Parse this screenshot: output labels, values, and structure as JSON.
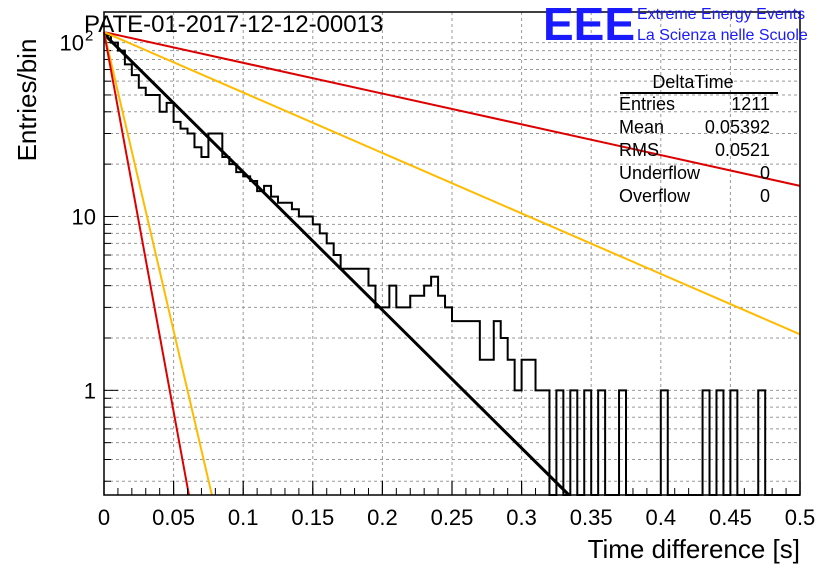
{
  "chart_data": {
    "type": "histogram",
    "title": "PATE-01-2017-12-12-00013",
    "xlabel": "Time difference [s]",
    "ylabel": "Entries/bin",
    "xlim": [
      0,
      0.5
    ],
    "ylim": [
      0.25,
      150
    ],
    "yscale": "log",
    "grid": true,
    "x_ticks": [
      {
        "value": 0,
        "label": "0"
      },
      {
        "value": 0.05,
        "label": "0.05"
      },
      {
        "value": 0.1,
        "label": "0.1"
      },
      {
        "value": 0.15,
        "label": "0.15"
      },
      {
        "value": 0.2,
        "label": "0.2"
      },
      {
        "value": 0.25,
        "label": "0.25"
      },
      {
        "value": 0.3,
        "label": "0.3"
      },
      {
        "value": 0.35,
        "label": "0.35"
      },
      {
        "value": 0.4,
        "label": "0.4"
      },
      {
        "value": 0.45,
        "label": "0.45"
      },
      {
        "value": 0.5,
        "label": "0.5"
      }
    ],
    "y_ticks": [
      {
        "value": 1,
        "label": "1"
      },
      {
        "value": 10,
        "label": "10"
      },
      {
        "value": 100,
        "label": "10",
        "sup": "2"
      }
    ],
    "bin_width": 0.005,
    "histogram": {
      "name": "DeltaTime",
      "color": "#000000",
      "bin_start": 0,
      "counts": [
        110,
        100,
        90,
        75,
        65,
        55,
        50,
        50,
        40,
        45,
        35,
        32,
        30,
        25,
        22,
        30,
        30,
        22,
        20,
        18,
        17,
        16,
        14,
        15,
        13,
        12,
        12,
        11,
        10,
        10,
        9,
        8,
        7,
        6,
        5,
        5,
        5,
        5,
        4,
        3,
        3,
        4,
        3,
        3,
        3.5,
        3.5,
        4,
        4.5,
        3.5,
        3,
        2.5,
        2.5,
        2.5,
        2.5,
        1.5,
        1.5,
        2.5,
        2,
        1.5,
        1,
        1.5,
        1.5,
        1,
        1,
        0,
        1,
        0,
        1,
        0,
        1,
        0,
        1,
        0,
        0,
        1,
        0,
        0,
        0,
        0,
        0,
        1,
        0,
        0,
        0,
        0,
        0,
        1,
        0,
        1,
        0,
        1,
        0,
        0,
        0,
        1,
        0,
        0,
        0,
        0,
        0
      ]
    },
    "lines": [
      {
        "name": "fit",
        "color": "#000000",
        "x": [
          0,
          0.334
        ],
        "y": [
          112,
          0.25
        ]
      },
      {
        "name": "red-upper",
        "color": "#dd0000",
        "x": [
          0,
          0.5
        ],
        "y": [
          115,
          15
        ]
      },
      {
        "name": "yellow-upper",
        "color": "#ffbb00",
        "x": [
          0,
          0.5
        ],
        "y": [
          115,
          2.1
        ]
      },
      {
        "name": "yellow-lower",
        "color": "#ffbb00",
        "x": [
          0,
          0.0775
        ],
        "y": [
          115,
          0.25
        ]
      },
      {
        "name": "red-lower",
        "color": "#dd0000",
        "x": [
          0,
          0.061
        ],
        "y": [
          115,
          0.25
        ]
      }
    ],
    "stats_box": {
      "title": "DeltaTime",
      "rows": [
        {
          "label": "Entries",
          "value": "1211"
        },
        {
          "label": "Mean",
          "value": "0.05392"
        },
        {
          "label": "RMS",
          "value": "0.0521"
        },
        {
          "label": "Underflow",
          "value": "0"
        },
        {
          "label": "Overflow",
          "value": "0"
        }
      ]
    }
  },
  "logo": {
    "mark": "EEE",
    "line1": "Extreme Energy Events",
    "line2": "La Scienza nelle Scuole"
  }
}
